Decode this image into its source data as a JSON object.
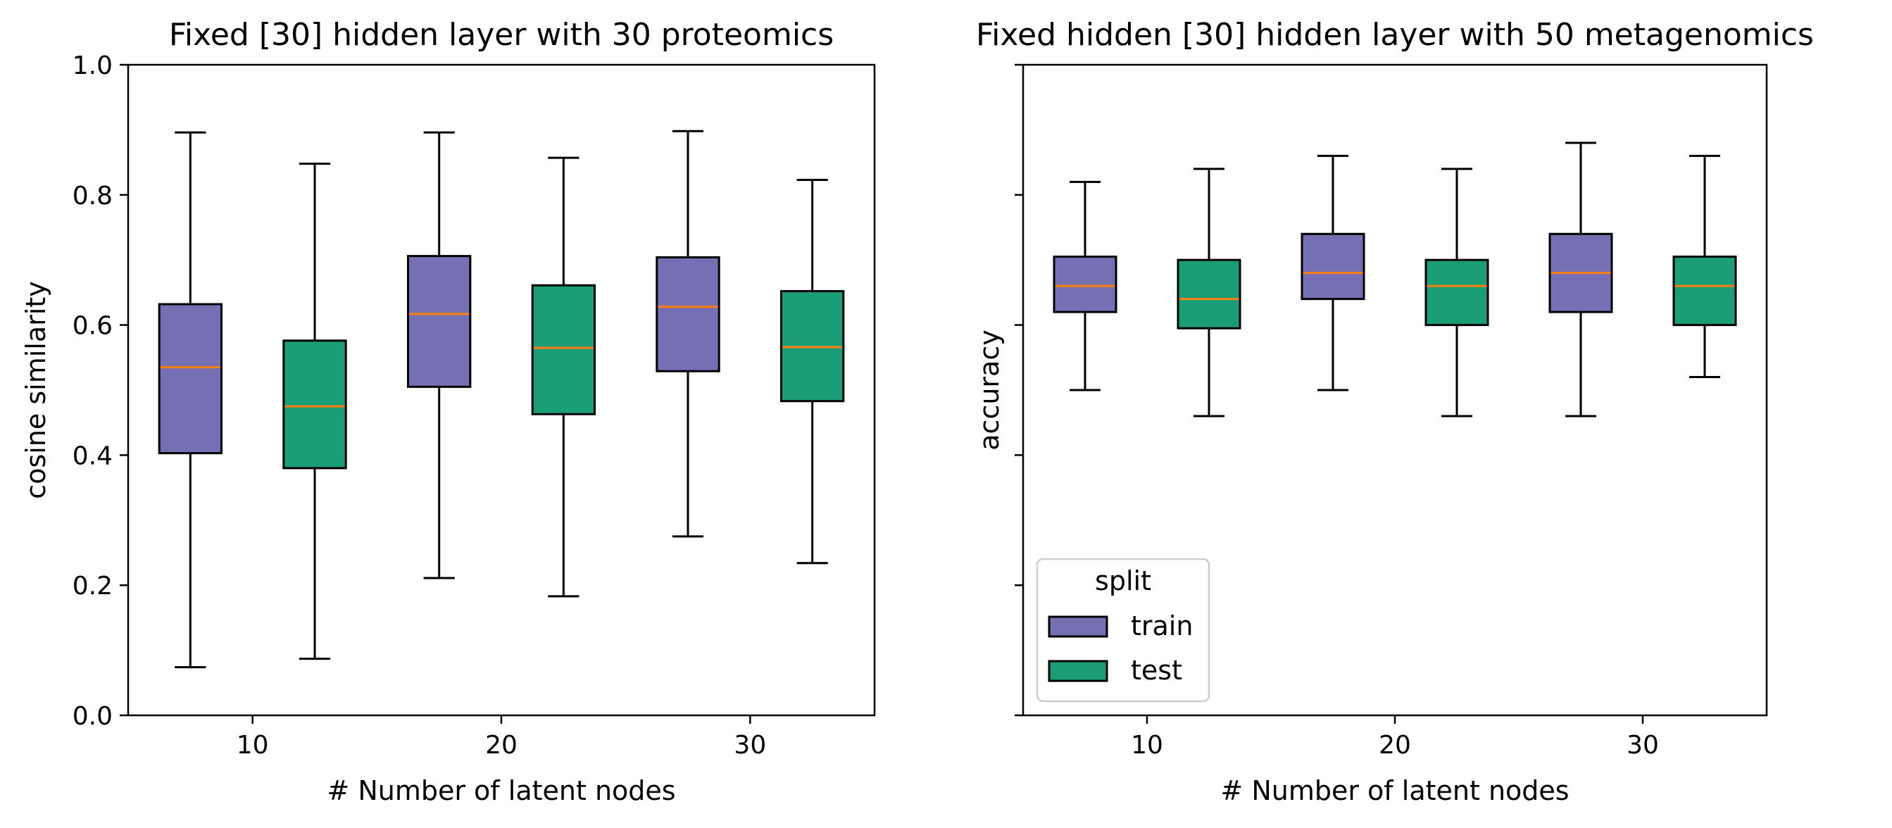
{
  "chart_data": [
    {
      "type": "box",
      "title": "Fixed [30] hidden layer with 30 proteomics",
      "xlabel": "# Number of latent nodes",
      "ylabel": "cosine similarity",
      "xlim": [
        5,
        35
      ],
      "ylim": [
        0.0,
        1.0
      ],
      "xticks": [
        10,
        20,
        30
      ],
      "xtick_labels": [
        "10",
        "20",
        "30"
      ],
      "yticks": [
        0.0,
        0.2,
        0.4,
        0.6,
        0.8,
        1.0
      ],
      "ytick_labels": [
        "0.0",
        "0.2",
        "0.4",
        "0.6",
        "0.8",
        "1.0"
      ],
      "series": [
        {
          "name": "train",
          "color": "#7570b3",
          "boxes": [
            {
              "x": 7.5,
              "whislo": 0.074,
              "q1": 0.403,
              "med": 0.535,
              "q3": 0.632,
              "whishi": 0.896
            },
            {
              "x": 17.5,
              "whislo": 0.211,
              "q1": 0.505,
              "med": 0.617,
              "q3": 0.706,
              "whishi": 0.896
            },
            {
              "x": 27.5,
              "whislo": 0.275,
              "q1": 0.529,
              "med": 0.628,
              "q3": 0.704,
              "whishi": 0.898
            }
          ]
        },
        {
          "name": "test",
          "color": "#1b9e77",
          "boxes": [
            {
              "x": 12.5,
              "whislo": 0.087,
              "q1": 0.38,
              "med": 0.475,
              "q3": 0.576,
              "whishi": 0.848
            },
            {
              "x": 22.5,
              "whislo": 0.183,
              "q1": 0.463,
              "med": 0.565,
              "q3": 0.661,
              "whishi": 0.857
            },
            {
              "x": 32.5,
              "whislo": 0.234,
              "q1": 0.483,
              "med": 0.566,
              "q3": 0.652,
              "whishi": 0.823
            }
          ]
        }
      ],
      "median_color": "#ff7f0e",
      "grid": false
    },
    {
      "type": "box",
      "title": "Fixed hidden [30] hidden layer with 50 metagenomics",
      "xlabel": "# Number of latent nodes",
      "ylabel": "accuracy",
      "xlim": [
        5,
        35
      ],
      "ylim": [
        0.0,
        1.0
      ],
      "xticks": [
        10,
        20,
        30
      ],
      "xtick_labels": [
        "10",
        "20",
        "30"
      ],
      "yticks": [
        0.0,
        0.2,
        0.4,
        0.6,
        0.8,
        1.0
      ],
      "ytick_labels": [
        "",
        "",
        "",
        "",
        "",
        ""
      ],
      "series": [
        {
          "name": "train",
          "color": "#7570b3",
          "boxes": [
            {
              "x": 7.5,
              "whislo": 0.5,
              "q1": 0.62,
              "med": 0.66,
              "q3": 0.705,
              "whishi": 0.82
            },
            {
              "x": 17.5,
              "whislo": 0.5,
              "q1": 0.64,
              "med": 0.68,
              "q3": 0.74,
              "whishi": 0.86
            },
            {
              "x": 27.5,
              "whislo": 0.46,
              "q1": 0.62,
              "med": 0.68,
              "q3": 0.74,
              "whishi": 0.88
            }
          ]
        },
        {
          "name": "test",
          "color": "#1b9e77",
          "boxes": [
            {
              "x": 12.5,
              "whislo": 0.46,
              "q1": 0.595,
              "med": 0.64,
              "q3": 0.7,
              "whishi": 0.84
            },
            {
              "x": 22.5,
              "whislo": 0.46,
              "q1": 0.6,
              "med": 0.66,
              "q3": 0.7,
              "whishi": 0.84
            },
            {
              "x": 32.5,
              "whislo": 0.52,
              "q1": 0.6,
              "med": 0.66,
              "q3": 0.705,
              "whishi": 0.86
            }
          ]
        }
      ],
      "median_color": "#ff7f0e",
      "grid": false,
      "legend": {
        "title": "split",
        "placement": "lower-left",
        "entries": [
          {
            "label": "train",
            "color": "#7570b3"
          },
          {
            "label": "test",
            "color": "#1b9e77"
          }
        ]
      }
    }
  ]
}
